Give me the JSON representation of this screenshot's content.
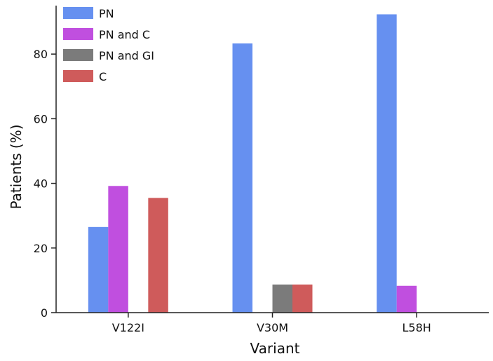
{
  "chart_data": {
    "type": "bar",
    "xlabel": "Variant",
    "ylabel": "Patients (%)",
    "categories": [
      "V122I",
      "V30M",
      "L58H"
    ],
    "ylim": [
      0,
      95
    ],
    "yticks": [
      0,
      20,
      40,
      60,
      80
    ],
    "grid": false,
    "legend_position": "top-left",
    "series": [
      {
        "name": "PN",
        "color": "#6690f0",
        "values": [
          26.5,
          83.3,
          92.3
        ]
      },
      {
        "name": "PN and C",
        "color": "#c04fdf",
        "values": [
          39.2,
          0,
          8.3
        ]
      },
      {
        "name": "PN and GI",
        "color": "#7b7b7b",
        "values": [
          0,
          8.7,
          0
        ]
      },
      {
        "name": "C",
        "color": "#cf5b5b",
        "values": [
          35.5,
          8.7,
          0
        ]
      }
    ]
  }
}
